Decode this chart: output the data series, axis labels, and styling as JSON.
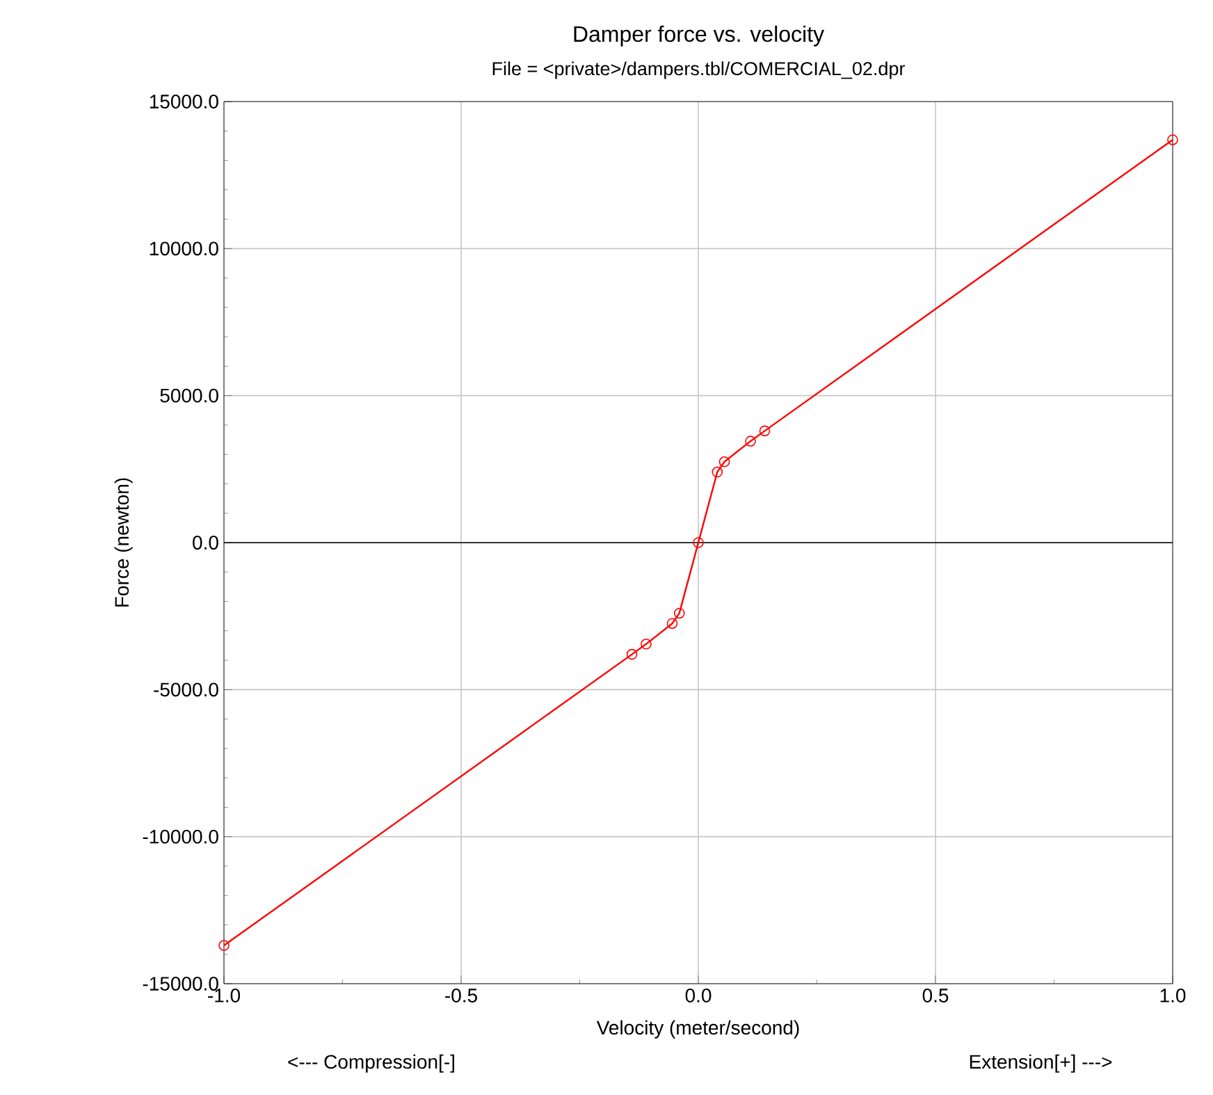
{
  "chart_data": {
    "type": "line",
    "title": "Damper force vs. velocity",
    "subtitle": "File = <private>/dampers.tbl/COMERCIAL_02.dpr",
    "xlabel": "Velocity (meter/second)",
    "ylabel": "Force (newton)",
    "annotations": [
      "<--- Compression[-]",
      "Extension[+] --->"
    ],
    "x": [
      -1.0,
      -0.14,
      -0.11,
      -0.055,
      -0.04,
      0.0,
      0.04,
      0.055,
      0.11,
      0.14,
      1.0
    ],
    "series": [
      {
        "color": "#ff0000",
        "values": [
          -13700,
          -3800,
          -3450,
          -2750,
          -2400,
          0,
          2400,
          2750,
          3450,
          3800,
          13700
        ]
      }
    ],
    "xlim": [
      -1.0,
      1.0
    ],
    "xticks": [
      {
        "value": -1.0,
        "label": "-1.0"
      },
      {
        "value": -0.5,
        "label": "-0.5"
      },
      {
        "value": 0,
        "label": "0.0"
      },
      {
        "value": 0.5,
        "label": "0.5"
      },
      {
        "value": 1.0,
        "label": "1.0"
      }
    ],
    "ylim": [
      -15000,
      15000
    ],
    "yticks": [
      {
        "value": -15000,
        "label": "-15000.0"
      },
      {
        "value": -10000,
        "label": "-10000.0"
      },
      {
        "value": -5000,
        "label": "-5000.0"
      },
      {
        "value": 0,
        "label": "0.0"
      },
      {
        "value": 5000,
        "label": "5000.0"
      },
      {
        "value": 10000,
        "label": "10000.0"
      },
      {
        "value": 15000,
        "label": "15000.0"
      }
    ],
    "ref_lines": [
      {
        "axis": "y",
        "value": 0,
        "color": "#000000"
      }
    ],
    "grid": true,
    "marker": "circle",
    "line_style": "solid"
  }
}
